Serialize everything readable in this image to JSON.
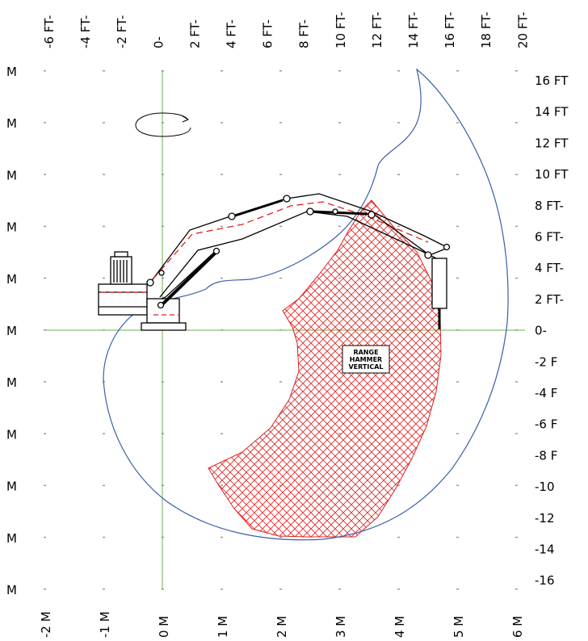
{
  "top_ft_labels": [
    "-6 FT-",
    "-4 FT-",
    "-2 FT-",
    "0-",
    "2 FT-",
    "4 FT-",
    "6 FT-",
    "8 FT-",
    "10 FT-",
    "12 FT-",
    "14 FT-",
    "16 FT-",
    "18 FT-",
    "20 FT-"
  ],
  "right_ft_labels": [
    "16 FT",
    "14 FT",
    "12 FT",
    "10 FT",
    "8 FT-",
    "6 FT-",
    "4 FT-",
    "2 FT-",
    "0-",
    "-2 F",
    "-4 F",
    "-6 F",
    "-8 F",
    "-10",
    "-12",
    "-14",
    "-16"
  ],
  "left_m_labels": [
    "M",
    "M",
    "M",
    "M",
    "M",
    "M",
    "M",
    "M",
    "M",
    "M",
    "M"
  ],
  "bottom_m_labels": [
    "-2 M",
    "-1 M",
    "0 M",
    "1 M",
    "2 M",
    "3 M",
    "4 M",
    "5 M",
    "6 M"
  ],
  "range_label": [
    "RANGE",
    "HAMMER",
    "VERTICAL"
  ],
  "colors": {
    "envelope": "#3a5fa8",
    "hatch": "#e02020",
    "axis": "#6ab04c",
    "machine": "#000000",
    "dots": "#999999"
  }
}
